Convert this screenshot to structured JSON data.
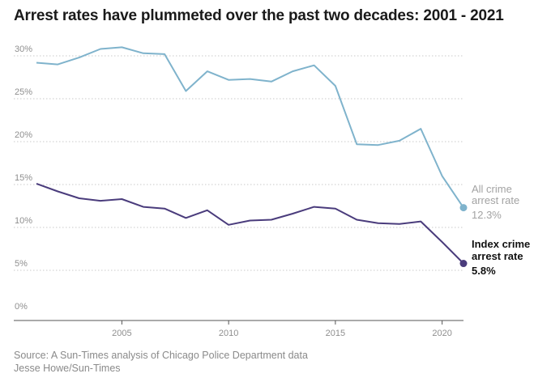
{
  "title": "Arrest rates have plummeted over the past two decades: 2001 - 2021",
  "source_line1": "Source: A Sun-Times analysis of Chicago Police Department data",
  "source_line2": "Jesse Howe/Sun-Times",
  "chart_data": {
    "type": "line",
    "title": "Arrest rates have plummeted over the past two decades: 2001 - 2021",
    "x": [
      2001,
      2002,
      2003,
      2004,
      2005,
      2006,
      2007,
      2008,
      2009,
      2010,
      2011,
      2012,
      2013,
      2014,
      2015,
      2016,
      2017,
      2018,
      2019,
      2020,
      2021
    ],
    "xlim": [
      2000.6,
      2021.4
    ],
    "ylim": [
      0,
      30
    ],
    "y_ticks": [
      0,
      5,
      10,
      15,
      20,
      25,
      30
    ],
    "y_tick_labels": [
      "0%",
      "5%",
      "10%",
      "15%",
      "20%",
      "25%",
      "30%"
    ],
    "x_ticks": [
      2005,
      2010,
      2015,
      2020
    ],
    "x_tick_labels": [
      "2005",
      "2010",
      "2015",
      "2020"
    ],
    "grid": "horizontal dotted",
    "series": [
      {
        "key": "all",
        "name": "All crime arrest rate",
        "label_lines": [
          "All crime",
          "arrest rate"
        ],
        "end_value_label": "12.3%",
        "color": "#7fb3cc",
        "values": [
          29.2,
          29.0,
          29.8,
          30.8,
          31.0,
          30.3,
          30.2,
          25.9,
          28.2,
          27.2,
          27.3,
          27.0,
          28.2,
          28.9,
          26.5,
          19.7,
          19.6,
          20.1,
          21.5,
          16.0,
          12.3
        ]
      },
      {
        "key": "index",
        "name": "Index crime arrest rate",
        "label_lines": [
          "Index crime",
          "arrest rate"
        ],
        "end_value_label": "5.8%",
        "color": "#4a3c7c",
        "values": [
          15.1,
          14.2,
          13.4,
          13.1,
          13.3,
          12.4,
          12.2,
          11.1,
          12.0,
          10.3,
          10.8,
          10.9,
          11.6,
          12.4,
          12.2,
          10.9,
          10.5,
          10.4,
          10.7,
          8.3,
          5.8
        ]
      }
    ]
  }
}
